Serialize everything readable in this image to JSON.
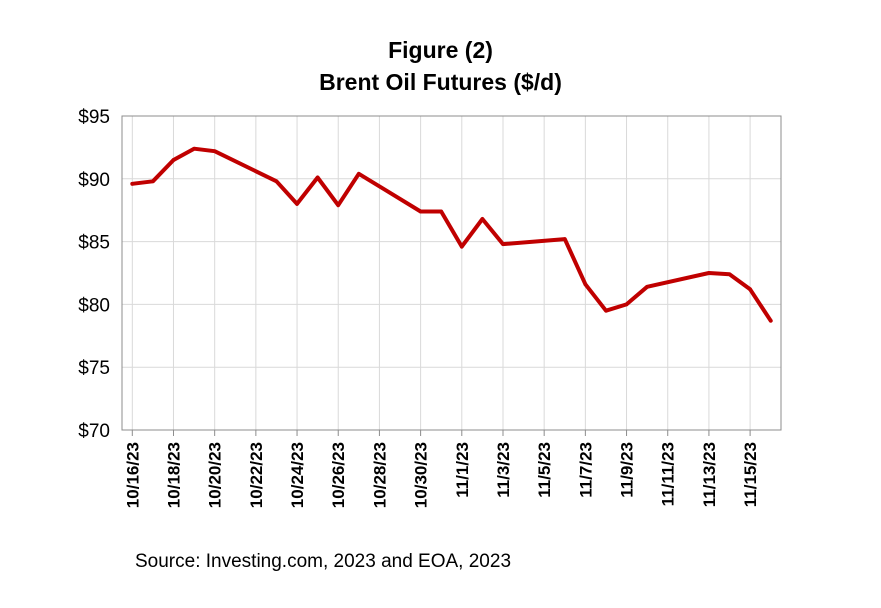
{
  "figure_label": "Figure (2)",
  "source": "Source: Investing.com, 2023 and EOA, 2023",
  "chart_data": {
    "type": "line",
    "title": "Figure (2)",
    "subtitle": "Brent Oil Futures ($/d)",
    "xlabel": "",
    "ylabel": "",
    "ylim": [
      70,
      95
    ],
    "yticks": [
      70,
      75,
      80,
      85,
      90,
      95
    ],
    "ytick_labels": [
      "$70",
      "$75",
      "$80",
      "$85",
      "$90",
      "$95"
    ],
    "xlim": [
      "2023-10-16",
      "2023-11-16"
    ],
    "xtick_labels": [
      "10/16/23",
      "10/18/23",
      "10/20/23",
      "10/22/23",
      "10/24/23",
      "10/26/23",
      "10/28/23",
      "10/30/23",
      "11/1/23",
      "11/3/23",
      "11/5/23",
      "11/7/23",
      "11/9/23",
      "11/11/23",
      "11/13/23",
      "11/15/23"
    ],
    "grid": true,
    "line_color": "#C00000",
    "series": [
      {
        "x": [
          "2023-10-16",
          "2023-10-17",
          "2023-10-18",
          "2023-10-19",
          "2023-10-20",
          "2023-10-23",
          "2023-10-24",
          "2023-10-25",
          "2023-10-26",
          "2023-10-27",
          "2023-10-30",
          "2023-10-31",
          "2023-11-01",
          "2023-11-02",
          "2023-11-03",
          "2023-11-06",
          "2023-11-07",
          "2023-11-08",
          "2023-11-09",
          "2023-11-10",
          "2023-11-13",
          "2023-11-14",
          "2023-11-15",
          "2023-11-16"
        ],
        "values": [
          89.6,
          89.8,
          91.5,
          92.4,
          92.2,
          89.8,
          88.0,
          90.1,
          87.9,
          90.4,
          87.4,
          87.4,
          84.6,
          86.8,
          84.8,
          85.2,
          81.6,
          79.5,
          80.0,
          81.4,
          82.5,
          82.4,
          81.2,
          78.7
        ]
      }
    ]
  }
}
